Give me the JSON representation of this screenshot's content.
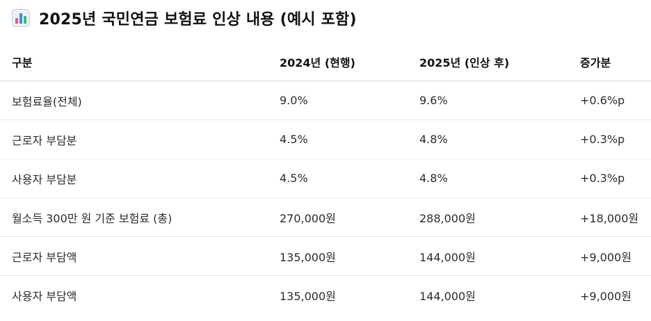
{
  "title": "2025년 국민연금 보험료 인상 내용 (예시 포함)",
  "title_icon": "bar-chart-emoji",
  "colors": {
    "text": "#1f1f1f",
    "divider": "#d9d9d9"
  },
  "table": {
    "headers": [
      "구분",
      "2024년 (현행)",
      "2025년 (인상 후)",
      "증가분"
    ],
    "rows": [
      [
        "보험료율(전체)",
        "9.0%",
        "9.6%",
        "+0.6%p"
      ],
      [
        "근로자 부담분",
        "4.5%",
        "4.8%",
        "+0.3%p"
      ],
      [
        "사용자 부담분",
        "4.5%",
        "4.8%",
        "+0.3%p"
      ],
      [
        "월소득 300만 원 기준 보험료 (총)",
        "270,000원",
        "288,000원",
        "+18,000원"
      ],
      [
        "근로자 부담액",
        "135,000원",
        "144,000원",
        "+9,000원"
      ],
      [
        "사용자 부담액",
        "135,000원",
        "144,000원",
        "+9,000원"
      ]
    ]
  }
}
